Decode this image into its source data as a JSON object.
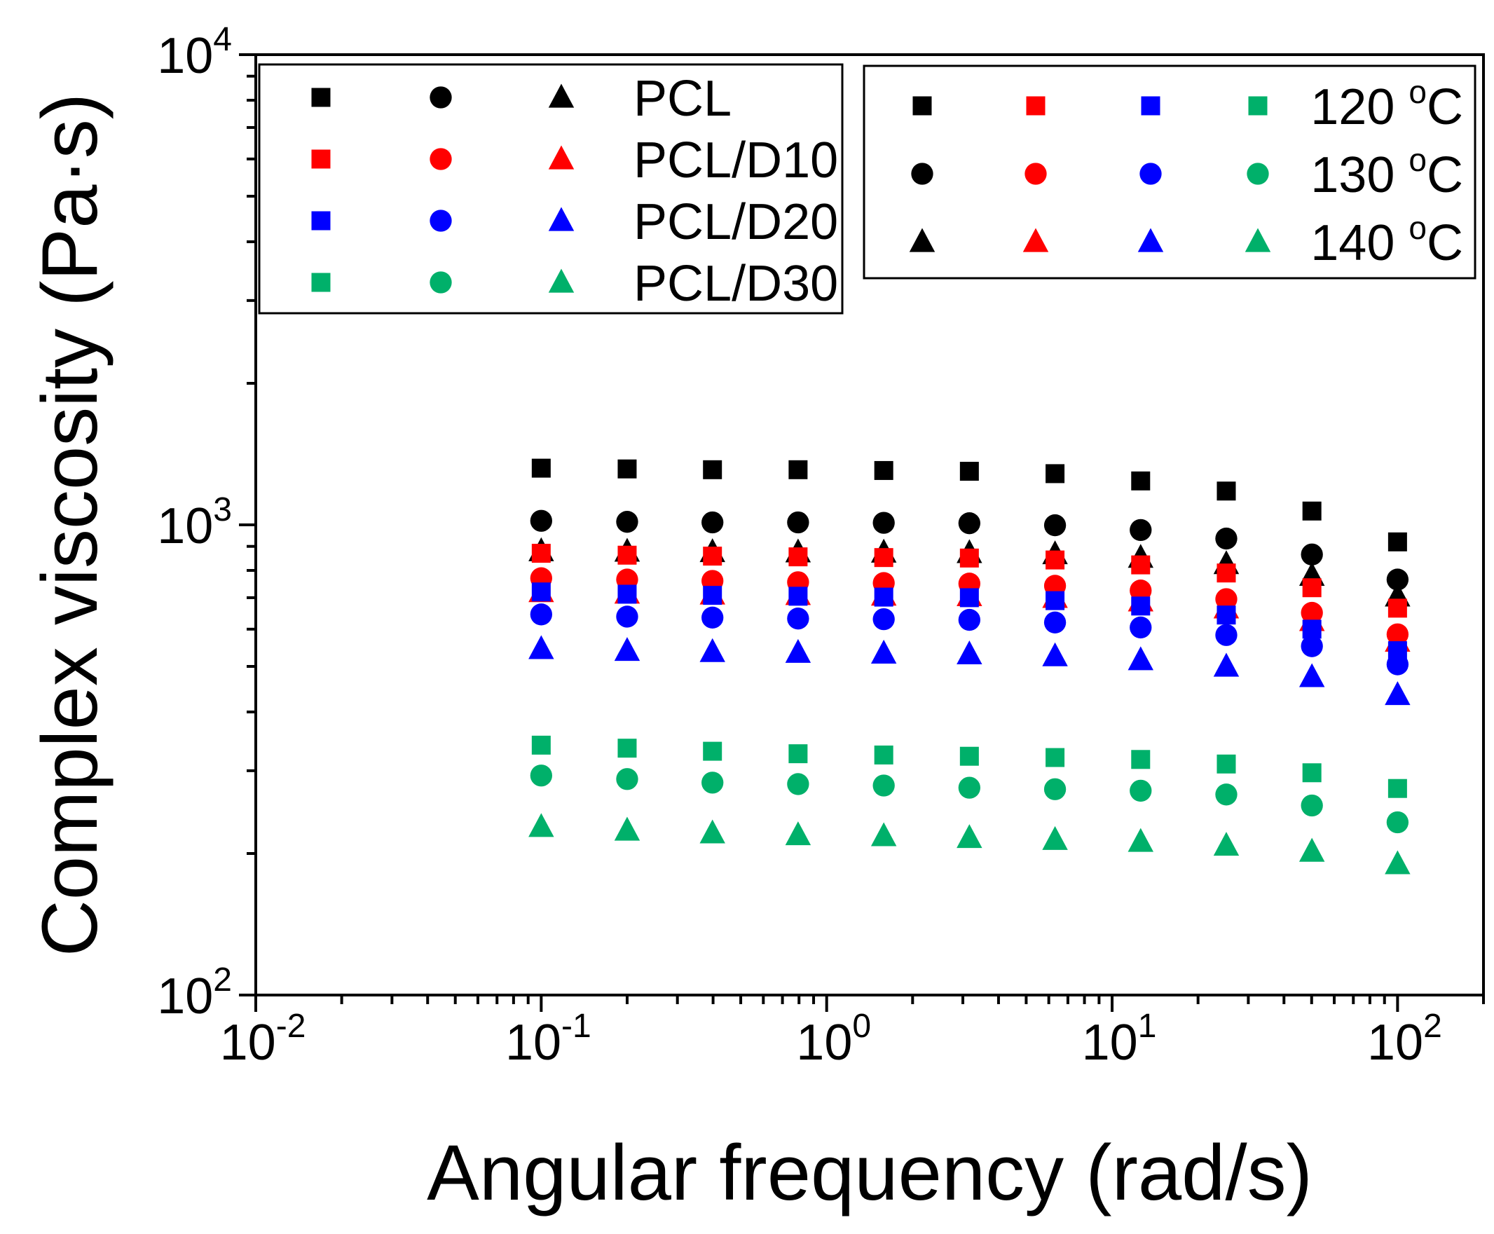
{
  "chart_data": {
    "type": "scatter",
    "title": "",
    "xlabel": "Angular frequency (rad/s)",
    "ylabel": "Complex viscosity (Pa·s)",
    "xscale": "log",
    "yscale": "log",
    "xlim": [
      0.01,
      200
    ],
    "ylim": [
      100,
      10000
    ],
    "grid": false,
    "x_ticks": [
      {
        "base": "10",
        "exp": "-2",
        "value": 0.01
      },
      {
        "base": "10",
        "exp": "-1",
        "value": 0.1
      },
      {
        "base": "10",
        "exp": "0",
        "value": 1
      },
      {
        "base": "10",
        "exp": "1",
        "value": 10
      },
      {
        "base": "10",
        "exp": "2",
        "value": 100
      }
    ],
    "y_ticks": [
      {
        "base": "10",
        "exp": "2",
        "value": 100
      },
      {
        "base": "10",
        "exp": "3",
        "value": 1000
      },
      {
        "base": "10",
        "exp": "4",
        "value": 10000
      }
    ],
    "x": [
      0.1,
      0.2,
      0.398,
      0.794,
      1.585,
      3.162,
      6.31,
      12.59,
      25.12,
      50.12,
      100
    ],
    "colors": {
      "PCL": "#000000",
      "PCL/D10": "#ff0000",
      "PCL/D20": "#0000ff",
      "PCL/D30": "#00b06a"
    },
    "markers": {
      "120 °C": "square",
      "130 °C": "circle",
      "140 °C": "triangle"
    },
    "series": [
      {
        "name": "PCL 120 °C",
        "material": "PCL",
        "temperature": "120 °C",
        "values": [
          1320,
          1315,
          1310,
          1310,
          1305,
          1300,
          1285,
          1240,
          1180,
          1070,
          920
        ]
      },
      {
        "name": "PCL 130 °C",
        "material": "PCL",
        "temperature": "130 °C",
        "values": [
          1020,
          1015,
          1012,
          1012,
          1010,
          1008,
          998,
          975,
          935,
          865,
          765
        ]
      },
      {
        "name": "PCL 140 °C",
        "material": "PCL",
        "temperature": "140 °C",
        "values": [
          880,
          878,
          876,
          875,
          874,
          872,
          867,
          852,
          826,
          780,
          705
        ]
      },
      {
        "name": "PCL/D10 120 °C",
        "material": "PCL/D10",
        "temperature": "120 °C",
        "values": [
          870,
          862,
          858,
          855,
          852,
          850,
          842,
          822,
          790,
          735,
          665
        ]
      },
      {
        "name": "PCL/D10 130 °C",
        "material": "PCL/D10",
        "temperature": "130 °C",
        "values": [
          770,
          765,
          760,
          755,
          752,
          750,
          742,
          725,
          695,
          650,
          585
        ]
      },
      {
        "name": "PCL/D10 140 °C",
        "material": "PCL/D10",
        "temperature": "140 °C",
        "values": [
          720,
          715,
          712,
          710,
          708,
          706,
          700,
          688,
          665,
          625,
          565
        ]
      },
      {
        "name": "PCL/D20 120 °C",
        "material": "PCL/D20",
        "temperature": "120 °C",
        "values": [
          720,
          712,
          708,
          705,
          702,
          700,
          690,
          672,
          643,
          600,
          540
        ]
      },
      {
        "name": "PCL/D20 130 °C",
        "material": "PCL/D20",
        "temperature": "130 °C",
        "values": [
          645,
          638,
          635,
          632,
          630,
          628,
          620,
          605,
          583,
          552,
          505
        ]
      },
      {
        "name": "PCL/D20 140 °C",
        "material": "PCL/D20",
        "temperature": "140 °C",
        "values": [
          545,
          540,
          537,
          535,
          533,
          531,
          526,
          516,
          500,
          475,
          435
        ]
      },
      {
        "name": "PCL/D30 120 °C",
        "material": "PCL/D30",
        "temperature": "120 °C",
        "values": [
          340,
          335,
          330,
          326,
          324,
          322,
          320,
          317,
          310,
          297,
          275
        ]
      },
      {
        "name": "PCL/D30 130 °C",
        "material": "PCL/D30",
        "temperature": "130 °C",
        "values": [
          293,
          288,
          283,
          281,
          279,
          276,
          274,
          272,
          267,
          253,
          233
        ]
      },
      {
        "name": "PCL/D30 140 °C",
        "material": "PCL/D30",
        "temperature": "140 °C",
        "values": [
          228,
          224,
          221,
          219,
          218,
          216,
          214,
          212,
          208,
          202,
          190
        ]
      }
    ],
    "legend_materials": {
      "placement": "top-left",
      "labels": [
        "PCL",
        "PCL/D10",
        "PCL/D20",
        "PCL/D30"
      ]
    },
    "legend_temperatures": {
      "placement": "top-right",
      "labels": [
        {
          "base": "120 ",
          "sup": "o",
          "unit": "C"
        },
        {
          "base": "130 ",
          "sup": "o",
          "unit": "C"
        },
        {
          "base": "140 ",
          "sup": "o",
          "unit": "C"
        }
      ]
    }
  }
}
